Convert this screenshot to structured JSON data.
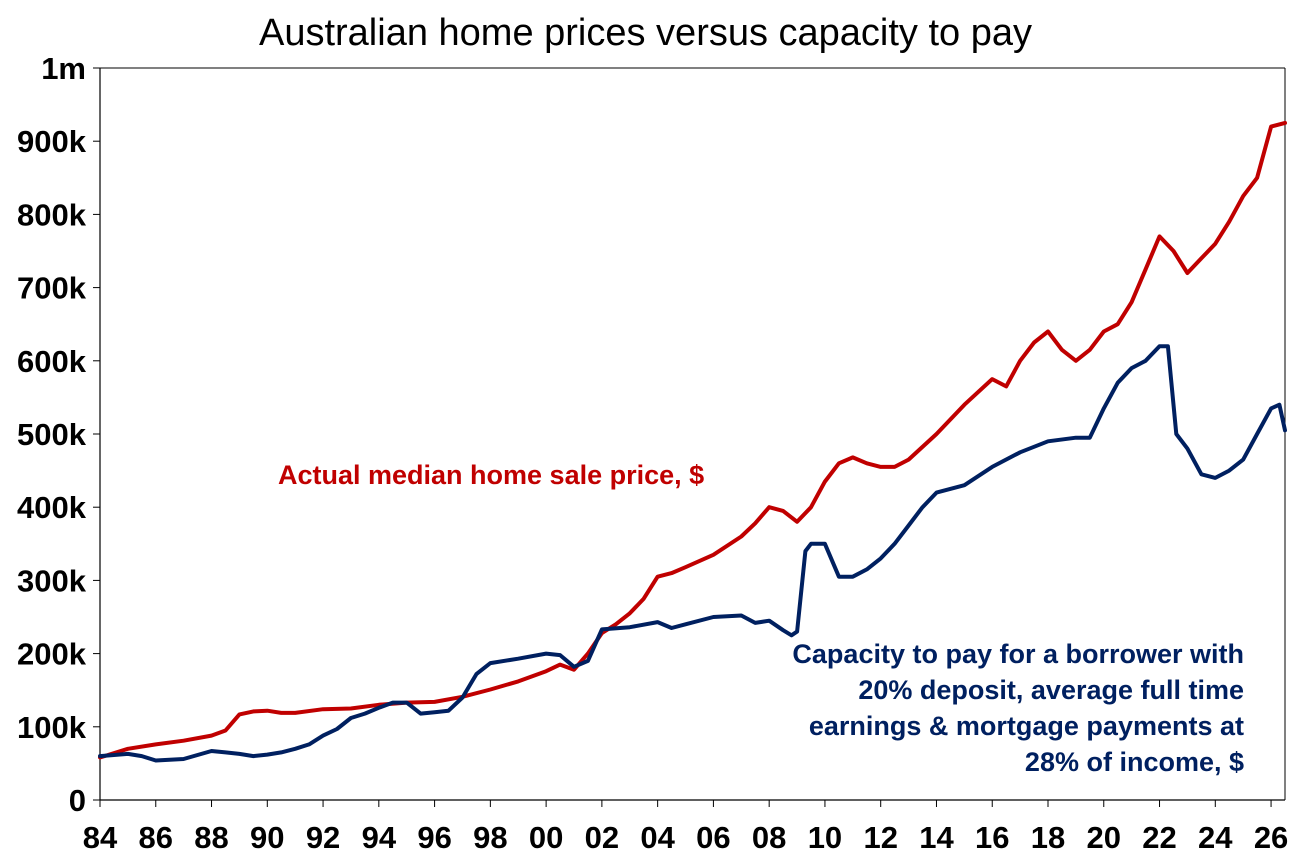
{
  "chart_data": {
    "type": "line",
    "title": "Australian home prices versus capacity to pay",
    "xlabel": "",
    "ylabel": "",
    "xlim": [
      1984,
      2026.5
    ],
    "ylim": [
      0,
      1000000
    ],
    "x_tick_values": [
      1984,
      1986,
      1988,
      1990,
      1992,
      1994,
      1996,
      1998,
      2000,
      2002,
      2004,
      2006,
      2008,
      2010,
      2012,
      2014,
      2016,
      2018,
      2020,
      2022,
      2024,
      2026
    ],
    "x_tick_labels": [
      "84",
      "86",
      "88",
      "90",
      "92",
      "94",
      "96",
      "98",
      "00",
      "02",
      "04",
      "06",
      "08",
      "10",
      "12",
      "14",
      "16",
      "18",
      "20",
      "22",
      "24",
      "26"
    ],
    "y_tick_values": [
      0,
      100000,
      200000,
      300000,
      400000,
      500000,
      600000,
      700000,
      800000,
      900000,
      1000000
    ],
    "y_tick_labels": [
      "0",
      "100k",
      "200k",
      "300k",
      "400k",
      "500k",
      "600k",
      "700k",
      "800k",
      "900k",
      "1m"
    ],
    "grid": false,
    "legend": "none",
    "annotations": [
      {
        "id": "price",
        "lines": [
          "Actual median home sale price, $"
        ]
      },
      {
        "id": "capacity",
        "lines": [
          "Capacity to pay for a borrower with",
          "20% deposit, average full time",
          "earnings & mortgage payments at",
          "28% of income, $"
        ]
      }
    ],
    "series": [
      {
        "name": "Actual median home sale price, $",
        "color": "#c00000",
        "x": [
          1984.0,
          1985.0,
          1986.0,
          1987.0,
          1988.0,
          1988.5,
          1989.0,
          1989.5,
          1990.0,
          1990.5,
          1991.0,
          1992.0,
          1993.0,
          1994.0,
          1995.0,
          1996.0,
          1997.0,
          1998.0,
          1999.0,
          2000.0,
          2000.5,
          2001.0,
          2001.5,
          2002.0,
          2002.5,
          2003.0,
          2003.5,
          2004.0,
          2004.5,
          2005.0,
          2006.0,
          2007.0,
          2007.5,
          2008.0,
          2008.5,
          2009.0,
          2009.5,
          2010.0,
          2010.5,
          2011.0,
          2011.5,
          2012.0,
          2012.5,
          2013.0,
          2014.0,
          2015.0,
          2016.0,
          2016.5,
          2017.0,
          2017.5,
          2018.0,
          2018.5,
          2019.0,
          2019.5,
          2020.0,
          2020.5,
          2021.0,
          2021.5,
          2022.0,
          2022.5,
          2023.0,
          2023.5,
          2024.0,
          2024.5,
          2025.0,
          2025.5,
          2026.0,
          2026.5
        ],
        "values": [
          58000,
          70000,
          76000,
          81000,
          88000,
          95000,
          117000,
          121000,
          122000,
          119000,
          119000,
          124000,
          125000,
          130000,
          133000,
          134000,
          141000,
          151000,
          162000,
          176000,
          185000,
          178000,
          200000,
          228000,
          240000,
          255000,
          275000,
          305000,
          310000,
          318000,
          335000,
          360000,
          378000,
          400000,
          395000,
          380000,
          400000,
          435000,
          460000,
          468000,
          460000,
          455000,
          455000,
          465000,
          500000,
          540000,
          575000,
          565000,
          600000,
          625000,
          640000,
          615000,
          600000,
          615000,
          640000,
          650000,
          680000,
          725000,
          770000,
          750000,
          720000,
          740000,
          760000,
          790000,
          825000,
          850000,
          920000,
          925000
        ]
      },
      {
        "name": "Capacity to pay for a borrower with 20% deposit, average full time earnings & mortgage payments at 28% of income, $",
        "color": "#002060",
        "x": [
          1984.0,
          1985.0,
          1985.5,
          1986.0,
          1987.0,
          1988.0,
          1988.5,
          1989.0,
          1989.5,
          1990.0,
          1990.5,
          1991.0,
          1991.5,
          1992.0,
          1992.5,
          1993.0,
          1993.5,
          1994.0,
          1994.5,
          1995.0,
          1995.5,
          1996.0,
          1996.5,
          1997.0,
          1997.5,
          1998.0,
          1999.0,
          2000.0,
          2000.5,
          2001.0,
          2001.5,
          2002.0,
          2003.0,
          2004.0,
          2004.5,
          2005.0,
          2006.0,
          2007.0,
          2007.5,
          2008.0,
          2008.5,
          2008.8,
          2009.0,
          2009.3,
          2009.5,
          2010.0,
          2010.5,
          2011.0,
          2011.5,
          2012.0,
          2012.5,
          2013.0,
          2013.5,
          2014.0,
          2015.0,
          2016.0,
          2017.0,
          2018.0,
          2019.0,
          2019.5,
          2020.0,
          2020.5,
          2021.0,
          2021.5,
          2022.0,
          2022.3,
          2022.6,
          2023.0,
          2023.5,
          2024.0,
          2024.5,
          2025.0,
          2025.5,
          2026.0,
          2026.3,
          2026.5
        ],
        "values": [
          60000,
          63000,
          60000,
          54000,
          56000,
          67000,
          65000,
          63000,
          60000,
          62000,
          65000,
          70000,
          76000,
          88000,
          97000,
          112000,
          118000,
          126000,
          133000,
          133000,
          118000,
          120000,
          122000,
          140000,
          172000,
          187000,
          193000,
          200000,
          198000,
          182000,
          190000,
          233000,
          236000,
          243000,
          235000,
          240000,
          250000,
          252000,
          242000,
          245000,
          232000,
          225000,
          230000,
          340000,
          350000,
          350000,
          305000,
          305000,
          315000,
          330000,
          350000,
          375000,
          400000,
          420000,
          430000,
          455000,
          475000,
          490000,
          495000,
          495000,
          535000,
          570000,
          590000,
          600000,
          620000,
          620000,
          500000,
          480000,
          445000,
          440000,
          450000,
          465000,
          500000,
          535000,
          540000,
          505000
        ]
      }
    ]
  }
}
